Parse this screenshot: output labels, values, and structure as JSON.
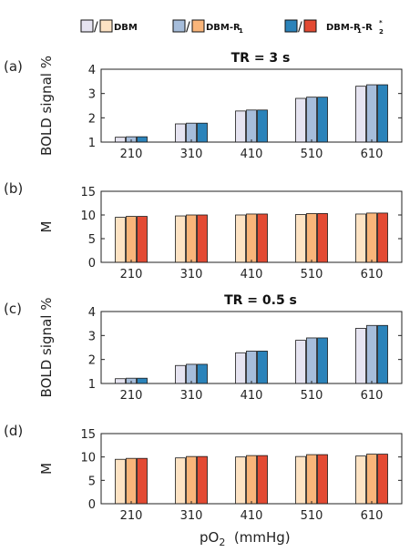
{
  "legend": {
    "items": [
      {
        "label": "DBM",
        "sub": "",
        "sup": "",
        "color_bold": "#e6e4f1",
        "color_m": "#fde3c4"
      },
      {
        "label": "DBM-R",
        "sub": "1",
        "sup": "",
        "color_bold": "#a6bddb",
        "color_m": "#f9b57a"
      },
      {
        "label": "DBM-R",
        "sub": "1",
        "tail": "-R",
        "tail_sub": "2",
        "tail_sup": "*",
        "color_bold": "#2b83ba",
        "color_m": "#e34a33"
      }
    ],
    "slash": "/"
  },
  "xlabel": {
    "main": "pO",
    "sub": "2",
    "rest": "  (mmHg)"
  },
  "chart_data": [
    {
      "type": "bar",
      "panel_label": "(a)",
      "title": "TR = 3 s",
      "ylabel": "BOLD signal %",
      "ylim": [
        1,
        4
      ],
      "yticks": [
        1,
        2,
        3,
        4
      ],
      "categories": [
        "210",
        "310",
        "410",
        "510",
        "610"
      ],
      "colors": [
        "#e6e4f1",
        "#a6bddb",
        "#2b83ba"
      ],
      "series": [
        {
          "name": "DBM",
          "values": [
            1.2,
            1.75,
            2.28,
            2.8,
            3.3
          ]
        },
        {
          "name": "DBM-R1",
          "values": [
            1.22,
            1.78,
            2.32,
            2.85,
            3.36
          ]
        },
        {
          "name": "DBM-R1-R2*",
          "values": [
            1.22,
            1.78,
            2.32,
            2.85,
            3.36
          ]
        }
      ]
    },
    {
      "type": "bar",
      "panel_label": "(b)",
      "title": "",
      "ylabel": "M",
      "ylim": [
        0,
        15
      ],
      "yticks": [
        0,
        5,
        10,
        15
      ],
      "categories": [
        "210",
        "310",
        "410",
        "510",
        "610"
      ],
      "colors": [
        "#fde3c4",
        "#f9b57a",
        "#e34a33"
      ],
      "series": [
        {
          "name": "DBM",
          "values": [
            9.5,
            9.8,
            10.0,
            10.1,
            10.2
          ]
        },
        {
          "name": "DBM-R1",
          "values": [
            9.7,
            10.0,
            10.2,
            10.3,
            10.4
          ]
        },
        {
          "name": "DBM-R1-R2*",
          "values": [
            9.7,
            10.0,
            10.2,
            10.3,
            10.4
          ]
        }
      ]
    },
    {
      "type": "bar",
      "panel_label": "(c)",
      "title": "TR = 0.5 s",
      "ylabel": "BOLD signal %",
      "ylim": [
        1,
        4
      ],
      "yticks": [
        1,
        2,
        3,
        4
      ],
      "categories": [
        "210",
        "310",
        "410",
        "510",
        "610"
      ],
      "colors": [
        "#e6e4f1",
        "#a6bddb",
        "#2b83ba"
      ],
      "series": [
        {
          "name": "DBM",
          "values": [
            1.2,
            1.75,
            2.28,
            2.8,
            3.3
          ]
        },
        {
          "name": "DBM-R1",
          "values": [
            1.22,
            1.8,
            2.35,
            2.9,
            3.42
          ]
        },
        {
          "name": "DBM-R1-R2*",
          "values": [
            1.22,
            1.8,
            2.35,
            2.9,
            3.42
          ]
        }
      ]
    },
    {
      "type": "bar",
      "panel_label": "(d)",
      "title": "",
      "ylabel": "M",
      "ylim": [
        0,
        15
      ],
      "yticks": [
        0,
        5,
        10,
        15
      ],
      "categories": [
        "210",
        "310",
        "410",
        "510",
        "610"
      ],
      "colors": [
        "#fde3c4",
        "#f9b57a",
        "#e34a33"
      ],
      "series": [
        {
          "name": "DBM",
          "values": [
            9.5,
            9.8,
            10.0,
            10.1,
            10.2
          ]
        },
        {
          "name": "DBM-R1",
          "values": [
            9.7,
            10.1,
            10.3,
            10.5,
            10.6
          ]
        },
        {
          "name": "DBM-R1-R2*",
          "values": [
            9.7,
            10.1,
            10.3,
            10.5,
            10.6
          ]
        }
      ]
    }
  ]
}
